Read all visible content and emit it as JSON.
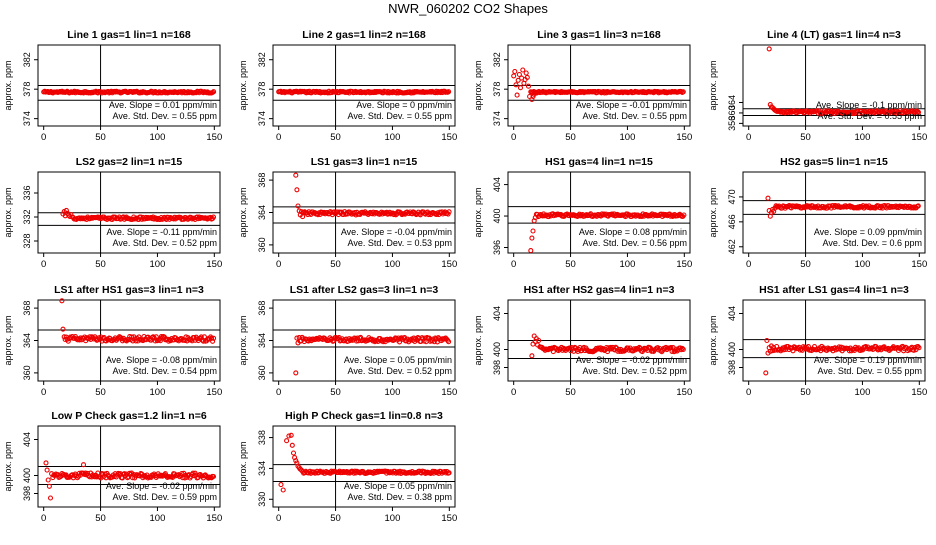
{
  "page": {
    "title": "NWR_060202  CO2 Shapes"
  },
  "style": {
    "point_color": "#ee0000",
    "axis_color": "#000000"
  },
  "chart_data": [
    {
      "type": "scatter",
      "title": "Line 1 gas=1 lin=1 n=168",
      "ylabel": "approx. ppm",
      "xlim": [
        -5,
        155
      ],
      "ylim": [
        373,
        384
      ],
      "xticks": [
        0,
        50,
        100,
        150
      ],
      "yticks": [
        374,
        378,
        382
      ],
      "hlines": [
        378.5,
        376.5
      ],
      "vline": 50,
      "slope_text": "Ave. Slope =  0.01  ppm/min",
      "std_text": "Ave. Std. Dev. =  0.55  ppm",
      "x_start": 0,
      "x_end": 150,
      "step": 0.9,
      "base": 377.6,
      "noise": 0.12,
      "spikes": []
    },
    {
      "type": "scatter",
      "title": "Line 2 gas=1 lin=2 n=168",
      "ylabel": "approx. ppm",
      "xlim": [
        -5,
        155
      ],
      "ylim": [
        373,
        384
      ],
      "xticks": [
        0,
        50,
        100,
        150
      ],
      "yticks": [
        374,
        378,
        382
      ],
      "hlines": [
        378.5,
        376.5
      ],
      "vline": 50,
      "slope_text": "Ave. Slope =  0  ppm/min",
      "std_text": "Ave. Std. Dev. =  0.55  ppm",
      "x_start": 0,
      "x_end": 150,
      "step": 0.9,
      "base": 377.6,
      "noise": 0.12,
      "spikes": []
    },
    {
      "type": "scatter",
      "title": "Line 3 gas=1 lin=3 n=168",
      "ylabel": "approx. ppm",
      "xlim": [
        -5,
        155
      ],
      "ylim": [
        373,
        384
      ],
      "xticks": [
        0,
        50,
        100,
        150
      ],
      "yticks": [
        374,
        378,
        382
      ],
      "hlines": [
        378.5,
        376.5
      ],
      "vline": 50,
      "slope_text": "Ave. Slope =  -0.01  ppm/min",
      "std_text": "Ave. Std. Dev. =  0.55  ppm",
      "x_start": 15,
      "x_end": 150,
      "step": 0.9,
      "base": 377.6,
      "noise": 0.1,
      "spikes": [
        [
          0,
          379.8
        ],
        [
          1,
          380.4
        ],
        [
          2,
          378.6
        ],
        [
          3,
          377.2
        ],
        [
          4,
          379.2
        ],
        [
          5,
          380.0
        ],
        [
          6,
          378.2
        ],
        [
          7,
          379.5
        ],
        [
          8,
          380.6
        ],
        [
          9,
          378.8
        ],
        [
          10,
          379.3
        ],
        [
          11,
          380.2
        ],
        [
          12,
          379.6
        ],
        [
          13,
          378.4
        ],
        [
          14,
          377.0
        ],
        [
          16,
          376.6
        ],
        [
          17,
          377.0
        ],
        [
          18,
          377.3
        ]
      ]
    },
    {
      "type": "scatter",
      "title": "Line 4 (LT) gas=1 lin=4 n=3",
      "ylabel": "approx. ppm",
      "xlim": [
        -5,
        155
      ],
      "ylim": [
        355,
        386
      ],
      "xticks": [
        0,
        50,
        100,
        150
      ],
      "yticks": [
        356,
        360,
        364
      ],
      "hlines": [
        361.6,
        359.0
      ],
      "vline": 50,
      "slope_text": "Ave. Slope =  -0.1  ppm/min",
      "std_text": "Ave. Std. Dev. =  0.55  ppm",
      "x_start": 35,
      "x_end": 150,
      "step": 0.9,
      "base": 360.3,
      "noise": 0.55,
      "spikes": [
        [
          18,
          384.5
        ],
        [
          19,
          363.2
        ],
        [
          20,
          362.3
        ],
        [
          21,
          362.0
        ],
        [
          22,
          361.6
        ],
        [
          23,
          361.1
        ],
        [
          24,
          360.8
        ],
        [
          25,
          360.6
        ],
        [
          26,
          360.8
        ],
        [
          27,
          360.5
        ],
        [
          28,
          360.3
        ],
        [
          29,
          360.6
        ],
        [
          30,
          360.2
        ],
        [
          31,
          360.4
        ],
        [
          32,
          360.0
        ],
        [
          33,
          360.5
        ],
        [
          34,
          360.2
        ]
      ]
    },
    {
      "type": "scatter",
      "title": "LS2 gas=2 lin=1 n=15",
      "ylabel": "approx. ppm",
      "xlim": [
        -5,
        155
      ],
      "ylim": [
        326,
        339.5
      ],
      "xticks": [
        0,
        50,
        100,
        150
      ],
      "yticks": [
        328,
        332,
        336
      ],
      "hlines": [
        332.7,
        330.6
      ],
      "vline": 50,
      "slope_text": "Ave. Slope =  -0.11  ppm/min",
      "std_text": "Ave. Std. Dev. =  0.52  ppm",
      "x_start": 26,
      "x_end": 150,
      "step": 0.9,
      "base": 331.8,
      "noise": 0.22,
      "spikes": [
        [
          17,
          332.5
        ],
        [
          18,
          332.9
        ],
        [
          19,
          332.2
        ],
        [
          20,
          333.1
        ],
        [
          21,
          332.6
        ],
        [
          22,
          332.3
        ],
        [
          23,
          332.1
        ],
        [
          24,
          332.4
        ],
        [
          25,
          332.0
        ]
      ]
    },
    {
      "type": "scatter",
      "title": "LS1 gas=3 lin=1 n=15",
      "ylabel": "approx. ppm",
      "xlim": [
        -5,
        155
      ],
      "ylim": [
        359,
        369
      ],
      "xticks": [
        0,
        50,
        100,
        150
      ],
      "yticks": [
        360,
        364,
        368
      ],
      "hlines": [
        364.7,
        362.7
      ],
      "vline": 50,
      "slope_text": "Ave. Slope =  -0.04  ppm/min",
      "std_text": "Ave. Std. Dev. =  0.53  ppm",
      "x_start": 22,
      "x_end": 150,
      "step": 0.9,
      "base": 363.9,
      "noise": 0.2,
      "spikes": [
        [
          15,
          368.6
        ],
        [
          16,
          366.8
        ],
        [
          17,
          364.8
        ],
        [
          18,
          364.2
        ],
        [
          19,
          363.7
        ],
        [
          20,
          364.1
        ],
        [
          21,
          363.5
        ]
      ]
    },
    {
      "type": "scatter",
      "title": "HS1 gas=4 lin=1 n=15",
      "ylabel": "approx. ppm",
      "xlim": [
        -5,
        155
      ],
      "ylim": [
        395.3,
        405.6
      ],
      "xticks": [
        0,
        50,
        100,
        150
      ],
      "yticks": [
        396,
        400,
        404
      ],
      "hlines": [
        401.2,
        399.1
      ],
      "vline": 50,
      "slope_text": "Ave. Slope =  0.08  ppm/min",
      "std_text": "Ave. Std. Dev. =  0.56  ppm",
      "x_start": 20,
      "x_end": 150,
      "step": 0.9,
      "base": 400.1,
      "noise": 0.18,
      "spikes": [
        [
          15,
          395.6
        ],
        [
          16,
          397.2
        ],
        [
          17,
          398.1
        ],
        [
          18,
          399.4
        ],
        [
          19,
          399.8
        ]
      ]
    },
    {
      "type": "scatter",
      "title": "HS2 gas=5 lin=1 n=15",
      "ylabel": "approx. ppm",
      "xlim": [
        -5,
        155
      ],
      "ylim": [
        461,
        474
      ],
      "xticks": [
        0,
        50,
        100,
        150
      ],
      "yticks": [
        462,
        466,
        470
      ],
      "hlines": [
        469.4,
        467.2
      ],
      "vline": 50,
      "slope_text": "Ave. Slope =  0.09  ppm/min",
      "std_text": "Ave. Std. Dev. =  0.6  ppm",
      "x_start": 24,
      "x_end": 150,
      "step": 0.9,
      "base": 468.4,
      "noise": 0.22,
      "spikes": [
        [
          17,
          469.8
        ],
        [
          18,
          467.8
        ],
        [
          19,
          466.9
        ],
        [
          20,
          467.5
        ],
        [
          21,
          468.0
        ],
        [
          22,
          467.7
        ],
        [
          23,
          468.2
        ]
      ]
    },
    {
      "type": "scatter",
      "title": "LS1 after HS1 gas=3 lin=1 n=3",
      "ylabel": "approx. ppm",
      "xlim": [
        -5,
        155
      ],
      "ylim": [
        359,
        369
      ],
      "xticks": [
        0,
        50,
        100,
        150
      ],
      "yticks": [
        360,
        364,
        368
      ],
      "hlines": [
        365.3,
        363.2
      ],
      "vline": 50,
      "slope_text": "Ave. Slope =  -0.08  ppm/min",
      "std_text": "Ave. Std. Dev. =  0.54  ppm",
      "x_start": 18,
      "x_end": 150,
      "step": 0.9,
      "base": 364.2,
      "noise": 0.3,
      "spikes": [
        [
          16,
          368.9
        ],
        [
          17,
          365.4
        ]
      ]
    },
    {
      "type": "scatter",
      "title": "LS1 after LS2 gas=3 lin=1 n=3",
      "ylabel": "approx. ppm",
      "xlim": [
        -5,
        155
      ],
      "ylim": [
        359,
        369
      ],
      "xticks": [
        0,
        50,
        100,
        150
      ],
      "yticks": [
        360,
        364,
        368
      ],
      "hlines": [
        365.3,
        363.2
      ],
      "vline": 50,
      "slope_text": "Ave. Slope =  0.05  ppm/min",
      "std_text": "Ave. Std. Dev. =  0.52  ppm",
      "x_start": 18,
      "x_end": 150,
      "step": 0.9,
      "base": 364.1,
      "noise": 0.28,
      "spikes": [
        [
          15,
          360.0
        ],
        [
          16,
          364.3
        ],
        [
          17,
          363.7
        ]
      ]
    },
    {
      "type": "scatter",
      "title": "HS1 after HS2 gas=4 lin=1 n=3",
      "ylabel": "approx. ppm",
      "xlim": [
        -5,
        155
      ],
      "ylim": [
        396.5,
        405.5
      ],
      "xticks": [
        0,
        50,
        100,
        150
      ],
      "yticks": [
        398,
        400,
        404
      ],
      "hlines": [
        401.0,
        399.0
      ],
      "vline": 50,
      "slope_text": "Ave. Slope =  -0.02  ppm/min",
      "std_text": "Ave. Std. Dev. =  0.52  ppm",
      "x_start": 24,
      "x_end": 150,
      "step": 0.9,
      "base": 400.0,
      "noise": 0.25,
      "spikes": [
        [
          16,
          399.3
        ],
        [
          17,
          400.6
        ],
        [
          18,
          401.5
        ],
        [
          19,
          400.9
        ],
        [
          20,
          401.2
        ],
        [
          21,
          400.5
        ],
        [
          22,
          401.0
        ],
        [
          23,
          400.3
        ]
      ]
    },
    {
      "type": "scatter",
      "title": "HS1 after LS1 gas=4 lin=1 n=3",
      "ylabel": "approx. ppm",
      "xlim": [
        -5,
        155
      ],
      "ylim": [
        396.5,
        405.5
      ],
      "xticks": [
        0,
        50,
        100,
        150
      ],
      "yticks": [
        398,
        400,
        404
      ],
      "hlines": [
        401.1,
        399.1
      ],
      "vline": 50,
      "slope_text": "Ave. Slope =  0.19  ppm/min",
      "std_text": "Ave. Std. Dev. =  0.55  ppm",
      "x_start": 21,
      "x_end": 150,
      "step": 0.9,
      "base": 400.1,
      "noise": 0.25,
      "spikes": [
        [
          15,
          397.4
        ],
        [
          16,
          401.0
        ],
        [
          17,
          399.6
        ],
        [
          18,
          400.2
        ],
        [
          19,
          399.8
        ],
        [
          20,
          400.4
        ]
      ]
    },
    {
      "type": "scatter",
      "title": "Low P Check gas=1.2 lin=1 n=6",
      "ylabel": "approx. ppm",
      "xlim": [
        -5,
        155
      ],
      "ylim": [
        396.5,
        405.5
      ],
      "xticks": [
        0,
        50,
        100,
        150
      ],
      "yticks": [
        398,
        400,
        404
      ],
      "hlines": [
        401.0,
        399.0
      ],
      "vline": 50,
      "slope_text": "Ave. Slope =  -0.02  ppm/min",
      "std_text": "Ave. Std. Dev. =  0.59  ppm",
      "x_start": 8,
      "x_end": 150,
      "step": 0.9,
      "base": 400.0,
      "noise": 0.28,
      "spikes": [
        [
          2,
          401.4
        ],
        [
          3,
          400.6
        ],
        [
          4,
          399.5
        ],
        [
          5,
          398.8
        ],
        [
          6,
          397.5
        ],
        [
          7,
          400.2
        ],
        [
          35,
          401.2
        ]
      ]
    },
    {
      "type": "scatter",
      "title": "High P Check gas=1 lin=0.8 n=3",
      "ylabel": "approx. ppm",
      "xlim": [
        -5,
        155
      ],
      "ylim": [
        329,
        339.5
      ],
      "xticks": [
        0,
        50,
        100,
        150
      ],
      "yticks": [
        330,
        334,
        338
      ],
      "hlines": [
        334.5,
        332.3
      ],
      "vline": 50,
      "slope_text": "Ave. Slope =  0.05  ppm/min",
      "std_text": "Ave. Std. Dev. =  0.38  ppm",
      "x_start": 22,
      "x_end": 150,
      "step": 0.9,
      "base": 333.5,
      "noise": 0.15,
      "spikes": [
        [
          2,
          331.9
        ],
        [
          4,
          331.2
        ],
        [
          7,
          337.6
        ],
        [
          9,
          338.2
        ],
        [
          11,
          338.3
        ],
        [
          12,
          337.0
        ],
        [
          13,
          336.0
        ],
        [
          14,
          335.4
        ],
        [
          15,
          335.0
        ],
        [
          16,
          334.7
        ],
        [
          17,
          334.3
        ],
        [
          18,
          334.1
        ],
        [
          19,
          333.9
        ],
        [
          20,
          333.8
        ],
        [
          21,
          333.6
        ]
      ]
    }
  ]
}
